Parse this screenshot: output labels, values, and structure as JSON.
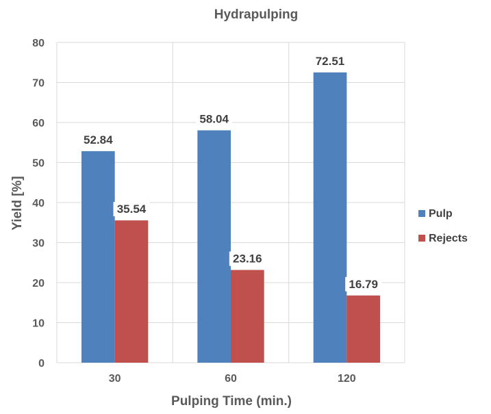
{
  "chart_data": {
    "type": "bar",
    "title": "Hydrapulping",
    "xlabel": "Pulping Time (min.)",
    "ylabel": "Yield [%]",
    "categories": [
      "30",
      "60",
      "120"
    ],
    "series": [
      {
        "name": "Pulp",
        "values": [
          52.84,
          58.04,
          72.51
        ],
        "color": "#4F81BD"
      },
      {
        "name": "Rejects",
        "values": [
          35.54,
          23.16,
          16.79
        ],
        "color": "#C0504D"
      }
    ],
    "data_labels": [
      [
        "52.84",
        "58.04",
        "72.51"
      ],
      [
        "35.54",
        "23.16",
        "16.79"
      ]
    ],
    "ylim": [
      0,
      80
    ],
    "yticks": [
      0,
      10,
      20,
      30,
      40,
      50,
      60,
      70,
      80
    ],
    "grid": true,
    "legend": "right"
  }
}
